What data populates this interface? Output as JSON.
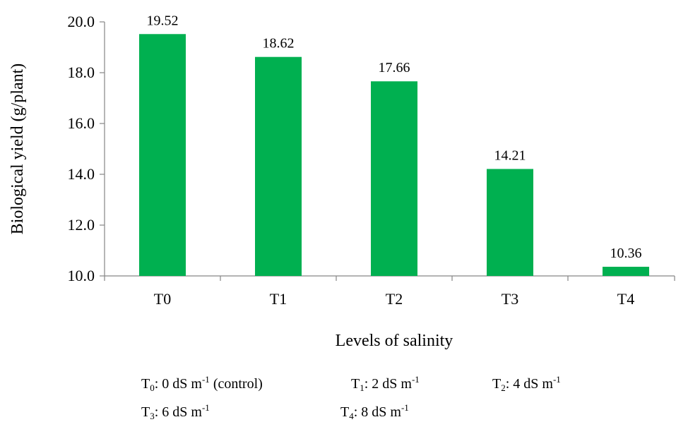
{
  "chart_data": {
    "type": "bar",
    "categories": [
      "T0",
      "T1",
      "T2",
      "T3",
      "T4"
    ],
    "values": [
      19.52,
      18.62,
      17.66,
      14.21,
      10.36
    ],
    "data_labels": [
      "19.52",
      "18.62",
      "17.66",
      "14.21",
      "10.36"
    ],
    "title": "",
    "xlabel": "Levels of salinity",
    "ylabel": "Biological yield (g/plant)",
    "ylim": [
      10.0,
      20.0
    ],
    "yticks": [
      "10.0",
      "12.0",
      "14.0",
      "16.0",
      "18.0",
      "20.0"
    ],
    "grid": false,
    "legend": "none",
    "bar_color": "#00B050"
  },
  "footnotes": [
    {
      "sym": "T",
      "sub": "0",
      "pre": ": 0 dS m",
      "sup": "-1",
      "post": " (control)"
    },
    {
      "sym": "T",
      "sub": "1",
      "pre": ": 2 dS m",
      "sup": "-1",
      "post": ""
    },
    {
      "sym": "T",
      "sub": "2",
      "pre": ": 4 dS m",
      "sup": "-1",
      "post": ""
    },
    {
      "sym": "T",
      "sub": "3",
      "pre": ": 6 dS m",
      "sup": "-1",
      "post": ""
    },
    {
      "sym": "T",
      "sub": "4",
      "pre": ": 8 dS m",
      "sup": "-1",
      "post": ""
    }
  ]
}
